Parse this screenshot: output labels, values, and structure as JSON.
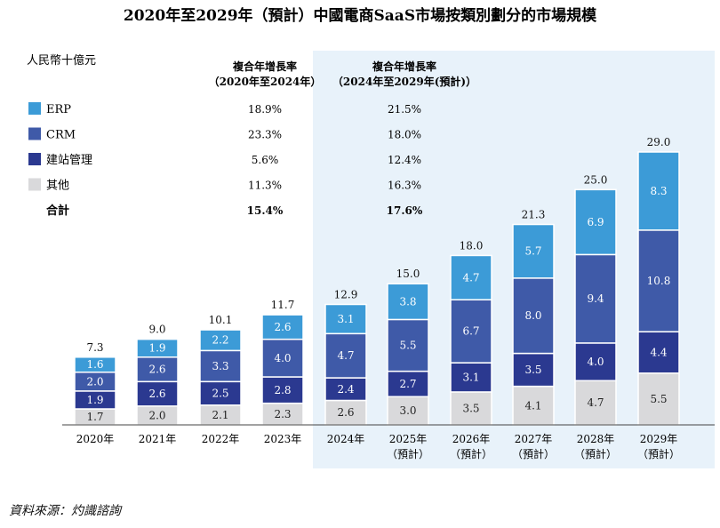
{
  "chart_data": {
    "type": "bar",
    "stacked": true,
    "title": "2020年至2029年（預計）中國電商SaaS市場按類別劃分的市場規模",
    "unit_label": "人民幣十億元",
    "categories": [
      "2020年",
      "2021年",
      "2022年",
      "2023年",
      "2024年",
      "2025年",
      "2026年",
      "2027年",
      "2028年",
      "2029年"
    ],
    "category_sublabels": [
      "",
      "",
      "",
      "",
      "",
      "（預計）",
      "（預計）",
      "（預計）",
      "（預計）",
      "（預計）"
    ],
    "series": [
      {
        "name": "其他",
        "color": "#d9d9db",
        "values": [
          1.7,
          2.0,
          2.1,
          2.3,
          2.6,
          3.0,
          3.5,
          4.1,
          4.7,
          5.5
        ]
      },
      {
        "name": "建站管理",
        "color": "#2b3990",
        "values": [
          1.9,
          2.6,
          2.5,
          2.8,
          2.4,
          2.7,
          3.1,
          3.5,
          4.0,
          4.4
        ]
      },
      {
        "name": "CRM",
        "color": "#3f5aa8",
        "values": [
          2.0,
          2.6,
          3.3,
          4.0,
          4.7,
          5.5,
          6.7,
          8.0,
          9.4,
          10.8
        ]
      },
      {
        "name": "ERP",
        "color": "#3c9bd7",
        "values": [
          1.6,
          1.9,
          2.2,
          2.6,
          3.1,
          3.8,
          4.7,
          5.7,
          6.9,
          8.3
        ]
      }
    ],
    "totals": [
      7.3,
      9.0,
      10.1,
      11.7,
      12.9,
      15.0,
      18.0,
      21.3,
      25.0,
      29.0
    ],
    "forecast_region_start_index": 4,
    "forecast_region_color": "#e8f2fa",
    "cagr_table": {
      "headers": [
        [
          "複合年增長率",
          "（2020年至2024年）"
        ],
        [
          "複合年增長率",
          "（2024年至2029年(預計)）"
        ]
      ],
      "rows": [
        {
          "label": "ERP",
          "color": "#3c9bd7",
          "v1": "18.9%",
          "v2": "21.5%",
          "bold": false
        },
        {
          "label": "CRM",
          "color": "#3f5aa8",
          "v1": "23.3%",
          "v2": "18.0%",
          "bold": false
        },
        {
          "label": "建站管理",
          "color": "#2b3990",
          "v1": "5.6%",
          "v2": "12.4%",
          "bold": false
        },
        {
          "label": "其他",
          "color": "#d9d9db",
          "v1": "11.3%",
          "v2": "16.3%",
          "bold": false
        },
        {
          "label": "合計",
          "color": "",
          "v1": "15.4%",
          "v2": "17.6%",
          "bold": true
        }
      ]
    }
  },
  "source_text": "資料來源：灼識諮詢"
}
